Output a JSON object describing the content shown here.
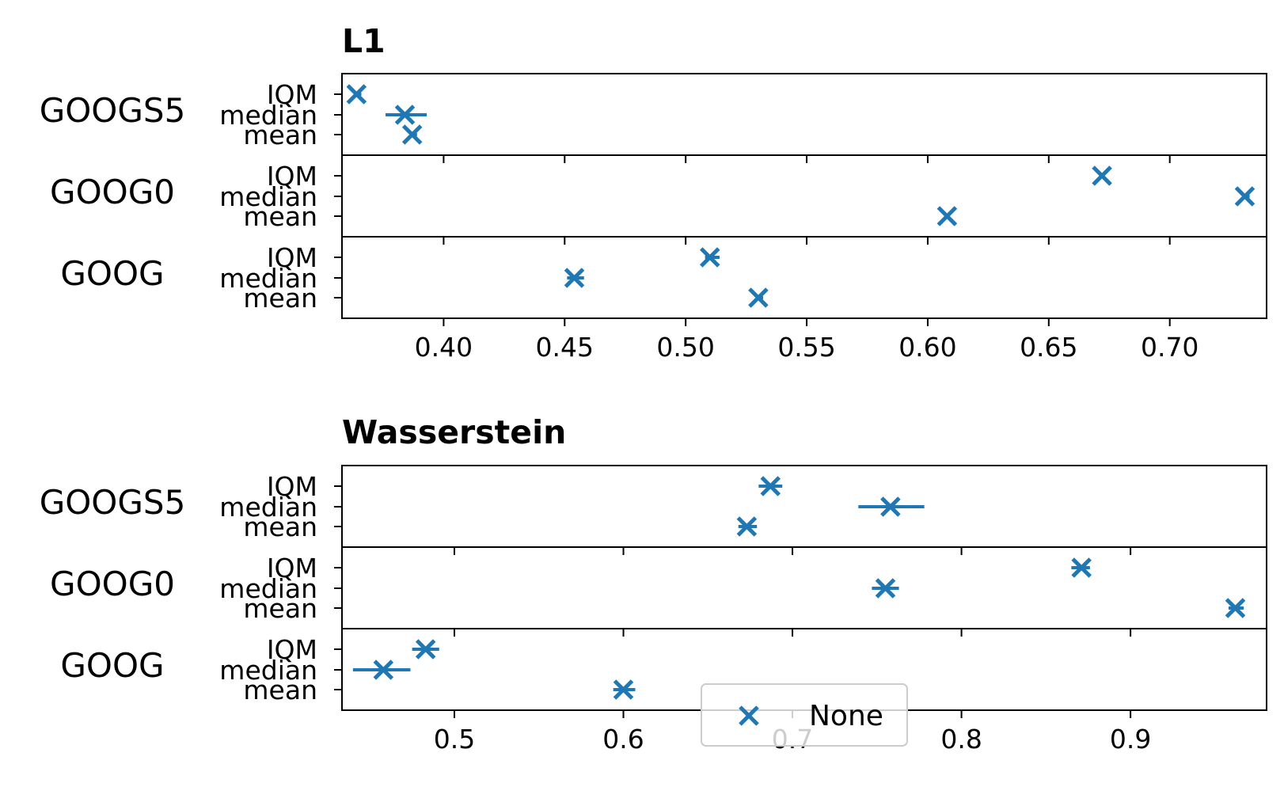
{
  "chart_data": [
    {
      "type": "scatter",
      "title": "L1",
      "xlabel": "",
      "ylabel": "",
      "xlim": [
        0.358,
        0.74
      ],
      "x_ticks": [
        "0.40",
        "0.45",
        "0.50",
        "0.55",
        "0.60",
        "0.65",
        "0.70"
      ],
      "x_tick_values": [
        0.4,
        0.45,
        0.5,
        0.55,
        0.6,
        0.65,
        0.7
      ],
      "groups": [
        {
          "name": "GOOGS5",
          "stats": [
            "IQM",
            "median",
            "mean"
          ],
          "values": [
            0.364,
            0.384,
            0.387
          ],
          "err_low": [
            0.363,
            0.376,
            0.386
          ],
          "err_high": [
            0.366,
            0.393,
            0.389
          ]
        },
        {
          "name": "GOOG0",
          "stats": [
            "IQM",
            "median",
            "mean"
          ],
          "values": [
            0.672,
            0.731,
            0.608
          ],
          "err_low": [
            0.671,
            0.73,
            0.607
          ],
          "err_high": [
            0.673,
            0.733,
            0.609
          ]
        },
        {
          "name": "GOOG",
          "stats": [
            "IQM",
            "median",
            "mean"
          ],
          "values": [
            0.51,
            0.454,
            0.53
          ],
          "err_low": [
            0.508,
            0.451,
            0.529
          ],
          "err_high": [
            0.514,
            0.458,
            0.532
          ]
        }
      ]
    },
    {
      "type": "scatter",
      "title": "Wasserstein",
      "xlabel": "",
      "ylabel": "",
      "xlim": [
        0.4335,
        0.9805
      ],
      "x_ticks": [
        "0.5",
        "0.6",
        "0.7",
        "0.8",
        "0.9"
      ],
      "x_tick_values": [
        0.5,
        0.6,
        0.7,
        0.8,
        0.9
      ],
      "groups": [
        {
          "name": "GOOGS5",
          "stats": [
            "IQM",
            "median",
            "mean"
          ],
          "values": [
            0.687,
            0.758,
            0.673
          ],
          "err_low": [
            0.68,
            0.739,
            0.668
          ],
          "err_high": [
            0.694,
            0.778,
            0.679
          ]
        },
        {
          "name": "GOOG0",
          "stats": [
            "IQM",
            "median",
            "mean"
          ],
          "values": [
            0.871,
            0.755,
            0.962
          ],
          "err_low": [
            0.865,
            0.747,
            0.958
          ],
          "err_high": [
            0.876,
            0.763,
            0.967
          ]
        },
        {
          "name": "GOOG",
          "stats": [
            "IQM",
            "median",
            "mean"
          ],
          "values": [
            0.483,
            0.458,
            0.6
          ],
          "err_low": [
            0.475,
            0.44,
            0.594
          ],
          "err_high": [
            0.491,
            0.474,
            0.607
          ]
        }
      ]
    }
  ],
  "legend": {
    "label": "None",
    "placement": "bottom-center"
  },
  "colors": {
    "marker": "#1f77b4",
    "axes": "#000000",
    "legend_border": "#cccccc"
  }
}
